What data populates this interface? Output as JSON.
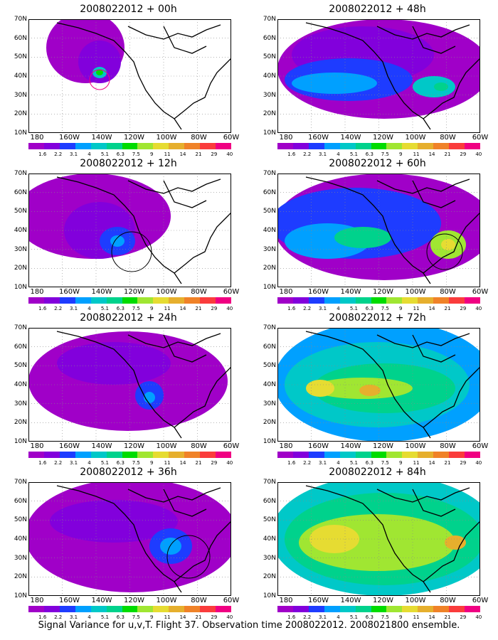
{
  "caption": "Signal Variance for u,v,T. Flight 37. Observation time 2008022012. 2008021800 ensemble.",
  "lat_labels": [
    "70N",
    "60N",
    "50N",
    "40N",
    "30N",
    "20N",
    "10N"
  ],
  "lon_labels": [
    "180",
    "160W",
    "140W",
    "120W",
    "100W",
    "80W",
    "60W"
  ],
  "colorbar": {
    "labels": [
      "1.6",
      "2.2",
      "3.1",
      "4",
      "5.1",
      "6.3",
      "7.5",
      "9",
      "11",
      "14",
      "21",
      "29",
      "40"
    ],
    "colors": [
      "#a000c8",
      "#8200dc",
      "#1e3cff",
      "#00a0ff",
      "#00c8c8",
      "#00d28c",
      "#00dc00",
      "#a0e632",
      "#e6dc32",
      "#e6af2d",
      "#f08228",
      "#fa3c3c",
      "#f00082"
    ]
  },
  "panels": [
    {
      "title": "2008022012 + 00h"
    },
    {
      "title": "2008022012 + 48h"
    },
    {
      "title": "2008022012 + 12h"
    },
    {
      "title": "2008022012 + 60h"
    },
    {
      "title": "2008022012 + 24h"
    },
    {
      "title": "2008022012 + 72h"
    },
    {
      "title": "2008022012 + 36h"
    },
    {
      "title": "2008022012 + 84h"
    }
  ]
}
